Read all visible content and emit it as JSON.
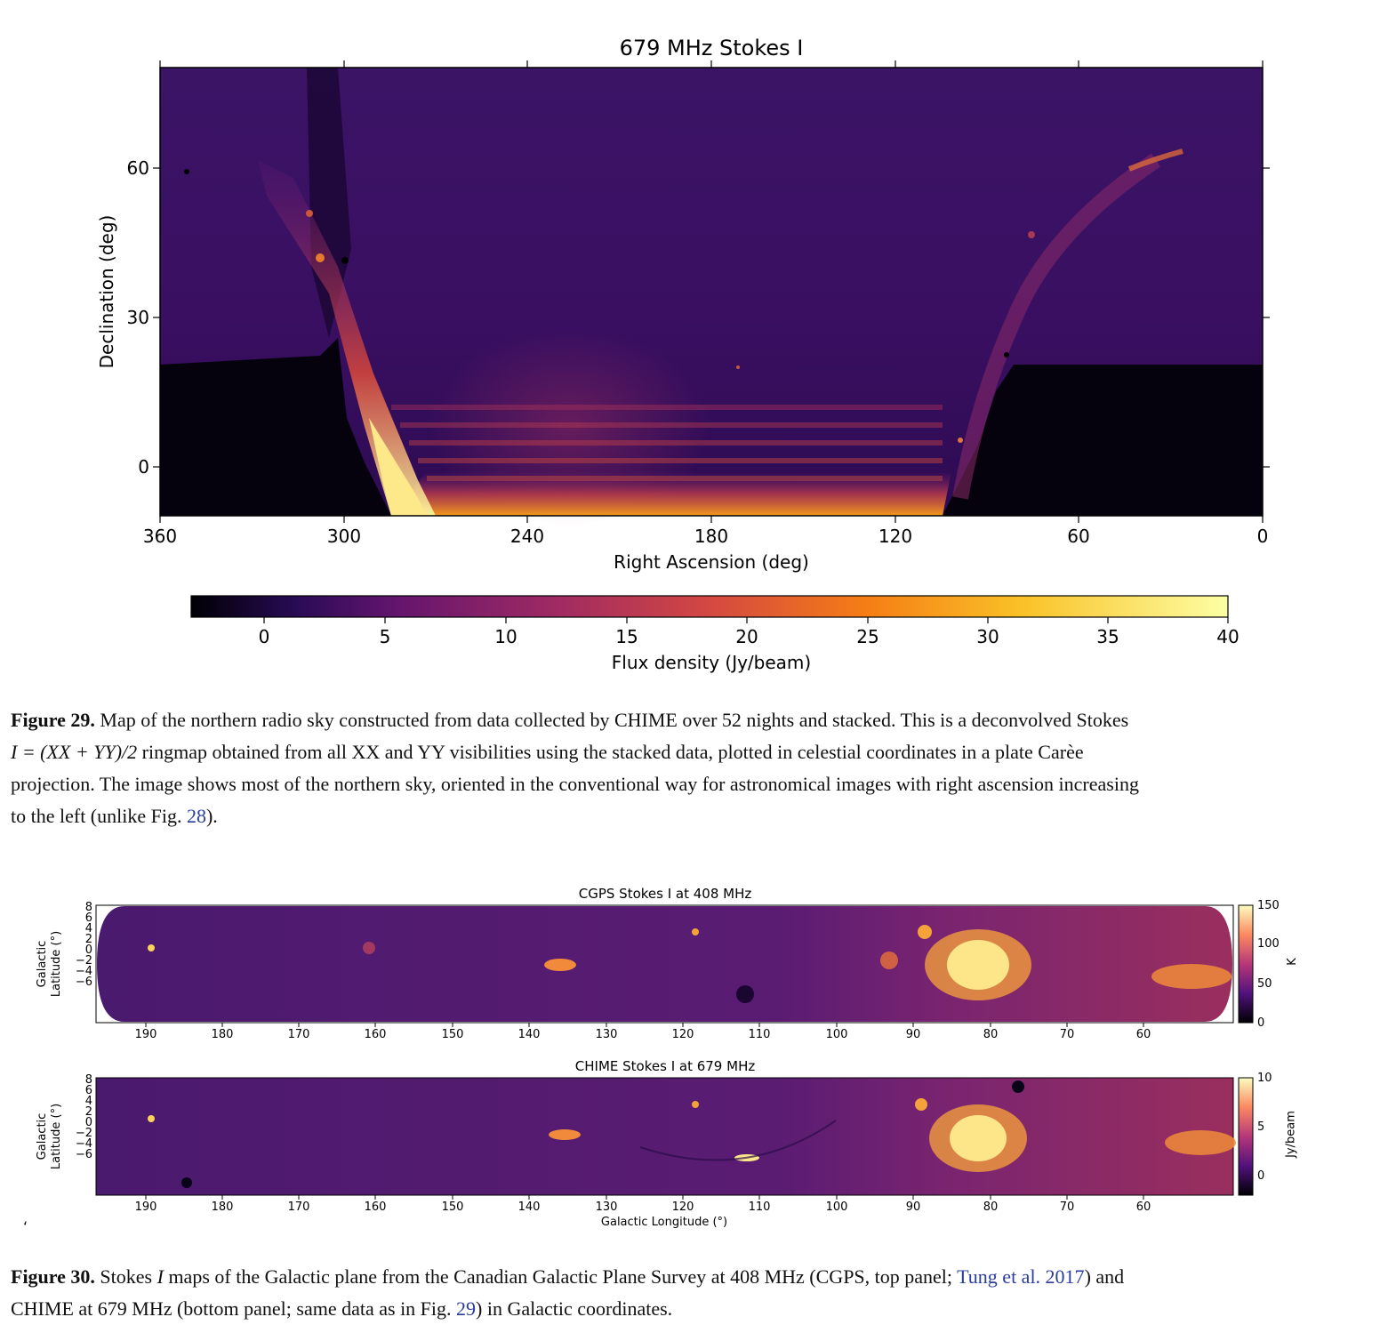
{
  "fig29": {
    "title": "679 MHz Stokes I",
    "ylabel": "Declination (deg)",
    "xlabel": "Right Ascension (deg)",
    "xticks": [
      "360",
      "300",
      "240",
      "180",
      "120",
      "60",
      "0"
    ],
    "yticks": [
      "60",
      "30",
      "0"
    ],
    "colorbar_label": "Flux density (Jy/beam)",
    "colorbar_ticks": [
      "0",
      "5",
      "10",
      "15",
      "20",
      "25",
      "30",
      "35",
      "40"
    ],
    "caption_label": "Figure 29.",
    "caption_line1": " Map of the northern radio sky constructed from data collected by CHIME over 52 nights and stacked. This is a deconvolved Stokes",
    "caption_line2_math": "I = (XX + YY)/2",
    "caption_line2": " ringmap obtained from all XX and YY visibilities using the stacked data, plotted in celestial coordinates in a plate Carèe",
    "caption_line3": "projection. The image shows most of the northern sky, oriented in the conventional way for astronomical images with right ascension increasing",
    "caption_line4a": "to the left (unlike Fig. ",
    "caption_line4_link": "28",
    "caption_line4b": ")."
  },
  "fig30": {
    "top_title": "CGPS Stokes I at 408 MHz",
    "bottom_title": "CHIME Stokes I at 679 MHz",
    "ylabel_line1": "Galactic",
    "ylabel_line2": "Latitude (°)",
    "xlabel": "Galactic Longitude (°)",
    "xticks": [
      "190",
      "180",
      "170",
      "160",
      "150",
      "140",
      "130",
      "120",
      "110",
      "100",
      "90",
      "80",
      "70",
      "60"
    ],
    "yticks": [
      "8",
      "6",
      "4",
      "2",
      "0",
      "−2",
      "−4",
      "−6"
    ],
    "top_cbar_ticks": [
      "150",
      "100",
      "50",
      "0"
    ],
    "top_cbar_label": "K",
    "bottom_cbar_ticks": [
      "10",
      "5",
      "0"
    ],
    "bottom_cbar_label": "Jy/beam",
    "stray_mark": "‘",
    "caption_label": "Figure 30.",
    "caption_line1a": " Stokes ",
    "caption_line1_math": "I",
    "caption_line1b": " maps of the Galactic plane from the Canadian Galactic Plane Survey at 408 MHz (CGPS, top panel; ",
    "caption_line1_link": "Tung et al. 2017",
    "caption_line1c": ") and",
    "caption_line2a": "CHIME at 679 MHz (bottom panel; same data as in Fig. ",
    "caption_line2_link": "29",
    "caption_line2b": ") in Galactic coordinates."
  }
}
